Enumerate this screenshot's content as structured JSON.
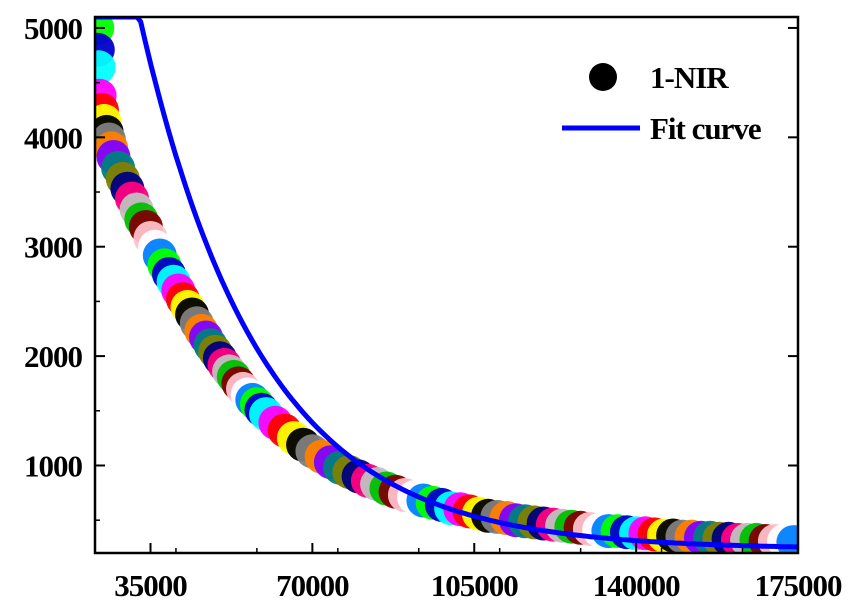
{
  "chart_data": {
    "type": "scatter",
    "xlim": [
      23000,
      175000
    ],
    "ylim": [
      200,
      5100
    ],
    "x_ticks": [
      35000,
      70000,
      105000,
      140000,
      175000
    ],
    "y_ticks": [
      1000,
      2000,
      3000,
      4000,
      5000
    ],
    "x_tick_labels": [
      "35000",
      "70000",
      "105000",
      "140000",
      "175000"
    ],
    "y_tick_labels": [
      "1000",
      "2000",
      "3000",
      "4000",
      "5000"
    ],
    "grid": false,
    "legend_position": "top-right",
    "series": [
      {
        "name": "1-NIR",
        "kind": "scatter",
        "marker": "circle",
        "color": "multicolor",
        "points": [
          [
            23500,
            5000
          ],
          [
            23600,
            4800
          ],
          [
            23800,
            4640
          ],
          [
            24000,
            4380
          ],
          [
            24500,
            4250
          ],
          [
            25000,
            4150
          ],
          [
            25500,
            4050
          ],
          [
            26000,
            3980
          ],
          [
            26500,
            3900
          ],
          [
            27000,
            3820
          ],
          [
            28000,
            3720
          ],
          [
            29000,
            3620
          ],
          [
            30000,
            3530
          ],
          [
            31000,
            3440
          ],
          [
            32000,
            3340
          ],
          [
            33000,
            3250
          ],
          [
            34000,
            3180
          ],
          [
            35000,
            3080
          ],
          [
            36000,
            3000
          ],
          [
            37000,
            2920
          ],
          [
            38000,
            2830
          ],
          [
            39000,
            2750
          ],
          [
            40000,
            2680
          ],
          [
            41000,
            2600
          ],
          [
            42000,
            2520
          ],
          [
            43000,
            2450
          ],
          [
            44000,
            2380
          ],
          [
            45000,
            2300
          ],
          [
            46000,
            2230
          ],
          [
            47000,
            2170
          ],
          [
            48000,
            2100
          ],
          [
            49000,
            2040
          ],
          [
            50000,
            1980
          ],
          [
            51000,
            1920
          ],
          [
            52000,
            1860
          ],
          [
            53000,
            1810
          ],
          [
            54000,
            1750
          ],
          [
            55000,
            1700
          ],
          [
            56000,
            1650
          ],
          [
            57000,
            1600
          ],
          [
            58000,
            1560
          ],
          [
            59000,
            1510
          ],
          [
            60000,
            1470
          ],
          [
            62000,
            1390
          ],
          [
            64000,
            1320
          ],
          [
            66000,
            1250
          ],
          [
            68000,
            1190
          ],
          [
            70000,
            1130
          ],
          [
            72000,
            1080
          ],
          [
            74000,
            1030
          ],
          [
            76000,
            980
          ],
          [
            78000,
            940
          ],
          [
            80000,
            900
          ],
          [
            82000,
            860
          ],
          [
            84000,
            830
          ],
          [
            86000,
            790
          ],
          [
            88000,
            760
          ],
          [
            90000,
            730
          ],
          [
            92000,
            710
          ],
          [
            94000,
            680
          ],
          [
            96000,
            660
          ],
          [
            98000,
            640
          ],
          [
            100000,
            610
          ],
          [
            102000,
            600
          ],
          [
            104000,
            580
          ],
          [
            106000,
            560
          ],
          [
            108000,
            540
          ],
          [
            110000,
            530
          ],
          [
            112000,
            520
          ],
          [
            114000,
            500
          ],
          [
            116000,
            490
          ],
          [
            118000,
            480
          ],
          [
            120000,
            470
          ],
          [
            122000,
            460
          ],
          [
            124000,
            450
          ],
          [
            126000,
            440
          ],
          [
            128000,
            430
          ],
          [
            130000,
            420
          ],
          [
            132000,
            410
          ],
          [
            134000,
            400
          ],
          [
            136000,
            400
          ],
          [
            138000,
            390
          ],
          [
            140000,
            380
          ],
          [
            142000,
            380
          ],
          [
            144000,
            370
          ],
          [
            146000,
            360
          ],
          [
            148000,
            360
          ],
          [
            150000,
            350
          ],
          [
            152000,
            350
          ],
          [
            154000,
            340
          ],
          [
            156000,
            340
          ],
          [
            158000,
            330
          ],
          [
            160000,
            330
          ],
          [
            162000,
            320
          ],
          [
            164000,
            320
          ],
          [
            166000,
            320
          ],
          [
            168000,
            310
          ],
          [
            170000,
            310
          ],
          [
            172000,
            310
          ],
          [
            174000,
            300
          ]
        ]
      },
      {
        "name": "Fit curve",
        "kind": "line",
        "color": "#0000ff",
        "model": "exponential_decay",
        "params": {
          "y0": 235,
          "A": 7050,
          "t": 26000
        },
        "x_range": [
          23000,
          175000
        ]
      }
    ],
    "marker_palette": [
      "#00ff00",
      "#0000cc",
      "#00ffff",
      "#ff00ff",
      "#ff0000",
      "#ffff00",
      "#000000",
      "#808080",
      "#ff8000",
      "#8000ff",
      "#008080",
      "#808000",
      "#000080",
      "#ff0080",
      "#c0c0c0",
      "#00c000",
      "#800000",
      "#ffc0cb",
      "#ffffff",
      "#0080ff"
    ]
  },
  "legend": {
    "scatter_label": "1-NIR",
    "line_label": "Fit curve"
  }
}
